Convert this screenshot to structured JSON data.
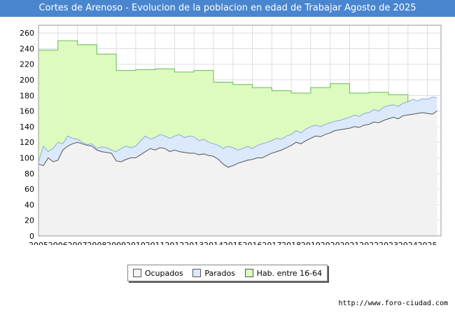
{
  "title": "Cortes de Arenoso - Evolucion de la poblacion en edad de Trabajar Agosto de 2025",
  "footer": "http://www.foro-ciudad.com",
  "colors": {
    "ocupados": "#f2f2f2",
    "parados": "#dbe9fb",
    "hab": "#ddfbbf",
    "hab_line": "#66bb55",
    "ocupados_line": "#555555",
    "parados_line": "#88aadd",
    "header": "#4a86cf"
  },
  "chart_data": {
    "type": "area",
    "title": "Cortes de Arenoso - Evolucion de la poblacion en edad de Trabajar Agosto de 2025",
    "xlabel": "",
    "ylabel": "",
    "ylim": [
      0,
      270
    ],
    "yticks": [
      0,
      20,
      40,
      60,
      80,
      100,
      120,
      140,
      160,
      180,
      200,
      220,
      240,
      260
    ],
    "xlim": [
      2005,
      2025.7
    ],
    "xticks": [
      "2005",
      "2006",
      "2007",
      "2008",
      "2009",
      "2010",
      "2011",
      "2012",
      "2013",
      "2014",
      "2015",
      "2016",
      "2017",
      "2018",
      "2019",
      "2020",
      "2021",
      "2022",
      "2023",
      "2024",
      "2025"
    ],
    "grid": true,
    "legend_position": "bottom-center",
    "legend": [
      "Ocupados",
      "Parados",
      "Hab. entre 16-64"
    ],
    "series": [
      {
        "name": "Hab. entre 16-64",
        "x": [
          2005,
          2006,
          2007,
          2008,
          2009,
          2010,
          2011,
          2012,
          2013,
          2014,
          2015,
          2016,
          2017,
          2018,
          2019,
          2020,
          2021,
          2022,
          2023,
          2024
        ],
        "values": [
          238,
          250,
          245,
          233,
          212,
          213,
          214,
          210,
          212,
          197,
          194,
          190,
          186,
          183,
          190,
          195,
          183,
          184,
          181,
          157
        ]
      },
      {
        "name": "Parados",
        "x": [
          2005,
          2005.25,
          2005.5,
          2005.75,
          2006,
          2006.25,
          2006.5,
          2006.75,
          2007,
          2007.25,
          2007.5,
          2007.75,
          2008,
          2008.25,
          2008.5,
          2008.75,
          2009,
          2009.25,
          2009.5,
          2009.75,
          2010,
          2010.25,
          2010.5,
          2010.75,
          2011,
          2011.25,
          2011.5,
          2011.75,
          2012,
          2012.25,
          2012.5,
          2012.75,
          2013,
          2013.25,
          2013.5,
          2013.75,
          2014,
          2014.25,
          2014.5,
          2014.75,
          2015,
          2015.25,
          2015.5,
          2015.75,
          2016,
          2016.25,
          2016.5,
          2016.75,
          2017,
          2017.25,
          2017.5,
          2017.75,
          2018,
          2018.25,
          2018.5,
          2018.75,
          2019,
          2019.25,
          2019.5,
          2019.75,
          2020,
          2020.25,
          2020.5,
          2020.75,
          2021,
          2021.25,
          2021.5,
          2021.75,
          2022,
          2022.25,
          2022.5,
          2022.75,
          2023,
          2023.25,
          2023.5,
          2023.75,
          2024,
          2024.25,
          2024.5,
          2024.75,
          2025,
          2025.25,
          2025.5
        ],
        "values": [
          95,
          115,
          108,
          112,
          120,
          118,
          128,
          125,
          124,
          120,
          117,
          118,
          112,
          114,
          113,
          110,
          108,
          112,
          115,
          113,
          115,
          122,
          128,
          124,
          126,
          130,
          128,
          125,
          128,
          130,
          126,
          128,
          127,
          122,
          124,
          120,
          118,
          116,
          112,
          115,
          113,
          110,
          112,
          115,
          112,
          116,
          118,
          120,
          122,
          125,
          124,
          128,
          130,
          135,
          132,
          137,
          140,
          142,
          140,
          143,
          145,
          147,
          148,
          150,
          152,
          155,
          153,
          157,
          158,
          162,
          160,
          165,
          167,
          168,
          166,
          170,
          172,
          175,
          173,
          176,
          175,
          178,
          177
        ]
      },
      {
        "name": "Ocupados",
        "x": [
          2005,
          2005.25,
          2005.5,
          2005.75,
          2006,
          2006.25,
          2006.5,
          2006.75,
          2007,
          2007.25,
          2007.5,
          2007.75,
          2008,
          2008.25,
          2008.5,
          2008.75,
          2009,
          2009.25,
          2009.5,
          2009.75,
          2010,
          2010.25,
          2010.5,
          2010.75,
          2011,
          2011.25,
          2011.5,
          2011.75,
          2012,
          2012.25,
          2012.5,
          2012.75,
          2013,
          2013.25,
          2013.5,
          2013.75,
          2014,
          2014.25,
          2014.5,
          2014.75,
          2015,
          2015.25,
          2015.5,
          2015.75,
          2016,
          2016.25,
          2016.5,
          2016.75,
          2017,
          2017.25,
          2017.5,
          2017.75,
          2018,
          2018.25,
          2018.5,
          2018.75,
          2019,
          2019.25,
          2019.5,
          2019.75,
          2020,
          2020.25,
          2020.5,
          2020.75,
          2021,
          2021.25,
          2021.5,
          2021.75,
          2022,
          2022.25,
          2022.5,
          2022.75,
          2023,
          2023.25,
          2023.5,
          2023.75,
          2024,
          2024.25,
          2024.5,
          2024.75,
          2025,
          2025.25,
          2025.5
        ],
        "values": [
          92,
          90,
          100,
          95,
          97,
          110,
          115,
          118,
          120,
          118,
          116,
          115,
          110,
          108,
          107,
          106,
          96,
          95,
          98,
          100,
          100,
          104,
          108,
          112,
          110,
          113,
          112,
          108,
          110,
          108,
          107,
          106,
          106,
          104,
          105,
          103,
          102,
          98,
          92,
          88,
          90,
          93,
          95,
          97,
          98,
          100,
          100,
          103,
          106,
          108,
          110,
          113,
          116,
          120,
          118,
          122,
          125,
          128,
          127,
          130,
          132,
          135,
          136,
          137,
          138,
          140,
          139,
          142,
          143,
          146,
          145,
          148,
          150,
          152,
          150,
          154,
          155,
          156,
          157,
          158,
          157,
          156,
          160
        ]
      }
    ]
  }
}
